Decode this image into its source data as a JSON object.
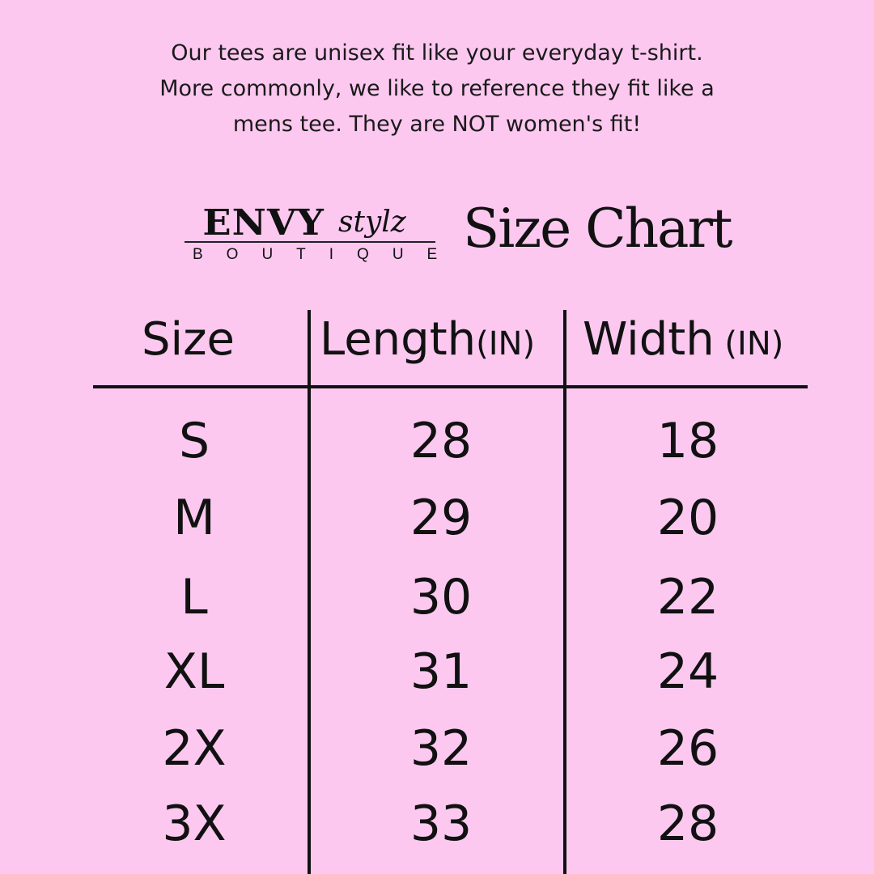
{
  "intro": [
    "Our tees are unisex fit like your everyday t-shirt.",
    "More commonly, we like to reference they fit like a",
    "mens tee. They are NOT women's fit!"
  ],
  "logo": {
    "envy": "ENVY",
    "stylz": "stylz",
    "boutique": "BOUTIQUE"
  },
  "title": "Size Chart",
  "headers": {
    "size": "Size",
    "length": "Length",
    "length_unit": "(IN)",
    "width": "Width",
    "width_unit": " (IN)"
  },
  "rows": [
    {
      "size": "S",
      "length": "28",
      "width": "18"
    },
    {
      "size": "M",
      "length": "29",
      "width": "20"
    },
    {
      "size": "L",
      "length": "30",
      "width": "22"
    },
    {
      "size": "XL",
      "length": "31",
      "width": "24"
    },
    {
      "size": "2X",
      "length": "32",
      "width": "26"
    },
    {
      "size": "3X",
      "length": "33",
      "width": "28"
    }
  ],
  "colors": {
    "background": "#fcc8f0",
    "text": "#111111"
  }
}
